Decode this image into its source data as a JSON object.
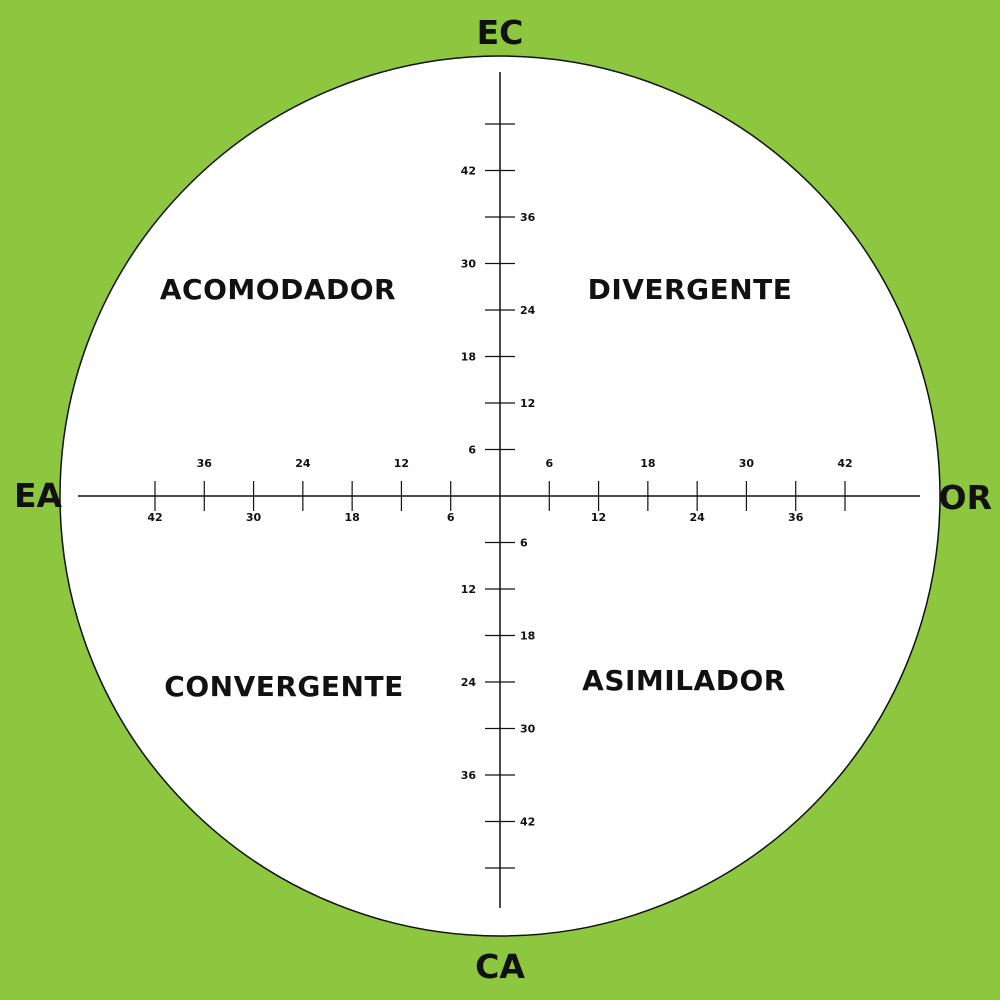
{
  "colors": {
    "background": "#8dc63f",
    "circle_fill": "#ffffff",
    "line": "#111111"
  },
  "poles": {
    "top": "EC",
    "bottom": "CA",
    "left": "EA",
    "right": "OR"
  },
  "quadrants": {
    "top_left": "ACOMODADOR",
    "top_right": "DIVERGENTE",
    "bottom_left": "CONVERGENTE",
    "bottom_right": "ASIMILADOR"
  },
  "scale": {
    "max": 48,
    "ticks_up": [
      {
        "value": 6,
        "label": "6",
        "label_side": "left"
      },
      {
        "value": 12,
        "label": "12",
        "label_side": "right"
      },
      {
        "value": 18,
        "label": "18",
        "label_side": "left"
      },
      {
        "value": 24,
        "label": "24",
        "label_side": "right"
      },
      {
        "value": 30,
        "label": "30",
        "label_side": "left"
      },
      {
        "value": 36,
        "label": "36",
        "label_side": "right"
      },
      {
        "value": 42,
        "label": "42",
        "label_side": "left"
      },
      {
        "value": 48,
        "label": "",
        "label_side": "left"
      }
    ],
    "ticks_down": [
      {
        "value": 6,
        "label": "6",
        "label_side": "right"
      },
      {
        "value": 12,
        "label": "12",
        "label_side": "left"
      },
      {
        "value": 18,
        "label": "18",
        "label_side": "right"
      },
      {
        "value": 24,
        "label": "24",
        "label_side": "left"
      },
      {
        "value": 30,
        "label": "30",
        "label_side": "right"
      },
      {
        "value": 36,
        "label": "36",
        "label_side": "left"
      },
      {
        "value": 42,
        "label": "42",
        "label_side": "right"
      },
      {
        "value": 48,
        "label": "",
        "label_side": "left"
      }
    ],
    "ticks_left": [
      {
        "value": 6,
        "label": "6",
        "label_side": "below"
      },
      {
        "value": 12,
        "label": "12",
        "label_side": "above"
      },
      {
        "value": 18,
        "label": "18",
        "label_side": "below"
      },
      {
        "value": 24,
        "label": "24",
        "label_side": "above"
      },
      {
        "value": 30,
        "label": "30",
        "label_side": "below"
      },
      {
        "value": 36,
        "label": "36",
        "label_side": "above"
      },
      {
        "value": 42,
        "label": "42",
        "label_side": "below"
      }
    ],
    "ticks_right": [
      {
        "value": 6,
        "label": "6",
        "label_side": "above"
      },
      {
        "value": 12,
        "label": "12",
        "label_side": "below"
      },
      {
        "value": 18,
        "label": "18",
        "label_side": "above"
      },
      {
        "value": 24,
        "label": "24",
        "label_side": "below"
      },
      {
        "value": 30,
        "label": "30",
        "label_side": "above"
      },
      {
        "value": 36,
        "label": "36",
        "label_side": "below"
      },
      {
        "value": 42,
        "label": "42",
        "label_side": "above"
      }
    ]
  }
}
